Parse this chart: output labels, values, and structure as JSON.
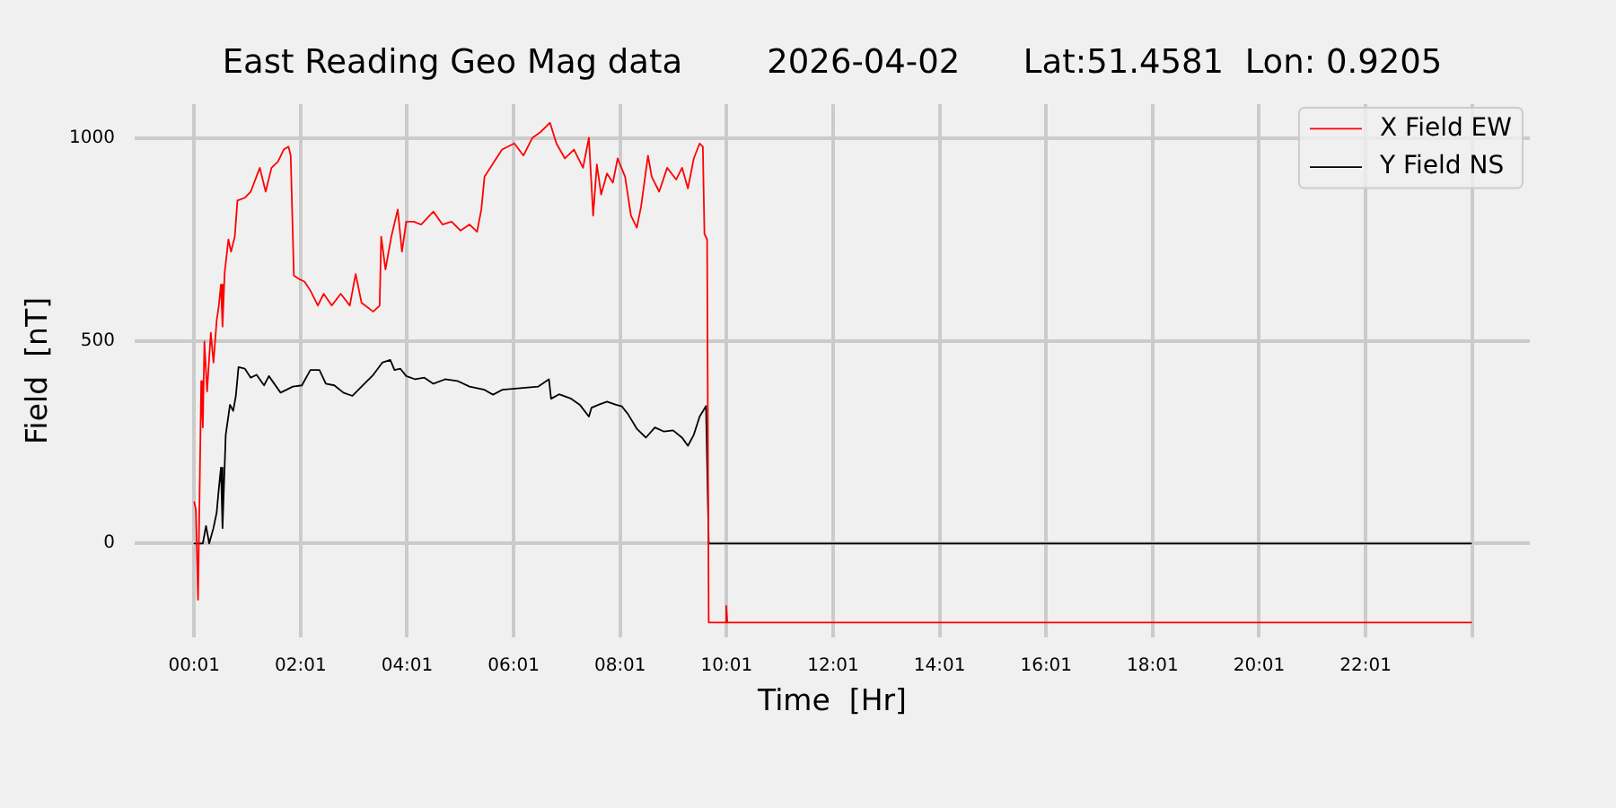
{
  "chart_data": {
    "type": "line",
    "title": "East Reading Geo Mag data        2026-04-02      Lat:51.4581  Lon: 0.9205",
    "xlabel": "Time  [Hr]",
    "ylabel": "Field  [nT]",
    "xlim": [
      -1.1,
      25.1
    ],
    "ylim": [
      -232,
      1084
    ],
    "xticks": [
      {
        "value": 0.0167,
        "label": "00:01"
      },
      {
        "value": 2.0167,
        "label": "02:01"
      },
      {
        "value": 4.0167,
        "label": "04:01"
      },
      {
        "value": 6.0167,
        "label": "06:01"
      },
      {
        "value": 8.0167,
        "label": "08:01"
      },
      {
        "value": 10.0167,
        "label": "10:01"
      },
      {
        "value": 12.0167,
        "label": "12:01"
      },
      {
        "value": 14.0167,
        "label": "14:01"
      },
      {
        "value": 16.0167,
        "label": "16:01"
      },
      {
        "value": 18.0167,
        "label": "18:01"
      },
      {
        "value": 20.0167,
        "label": "20:01"
      },
      {
        "value": 22.0167,
        "label": "22:01"
      },
      {
        "value": 24.0167,
        "label": null
      }
    ],
    "yticks": [
      0,
      500,
      1000
    ],
    "grid": true,
    "legend": "top right",
    "marker": "none",
    "line_style": "solid",
    "series": [
      {
        "name": "X Field EW",
        "color": "#ff0000",
        "x": [
          0.02,
          0.05,
          0.09,
          0.15,
          0.18,
          0.21,
          0.26,
          0.33,
          0.38,
          0.44,
          0.48,
          0.52,
          0.55,
          0.59,
          0.66,
          0.71,
          0.78,
          0.83,
          0.97,
          1.08,
          1.25,
          1.36,
          1.47,
          1.59,
          1.7,
          1.79,
          1.83,
          1.89,
          1.98,
          2.09,
          2.2,
          2.34,
          2.45,
          2.6,
          2.77,
          2.94,
          3.05,
          3.16,
          3.38,
          3.5,
          3.53,
          3.61,
          3.72,
          3.84,
          3.92,
          4.0,
          4.14,
          4.28,
          4.51,
          4.68,
          4.85,
          5.02,
          5.19,
          5.33,
          5.41,
          5.47,
          5.58,
          5.69,
          5.8,
          6.03,
          6.2,
          6.37,
          6.53,
          6.7,
          6.82,
          6.98,
          7.15,
          7.32,
          7.43,
          7.51,
          7.58,
          7.66,
          7.77,
          7.88,
          7.97,
          8.11,
          8.22,
          8.33,
          8.41,
          8.54,
          8.61,
          8.75,
          8.9,
          9.07,
          9.18,
          9.29,
          9.4,
          9.51,
          9.57,
          9.6,
          9.65,
          9.68,
          10.0,
          10.01,
          10.03,
          24.0
        ],
        "values": [
          102,
          83,
          -139,
          401,
          286,
          498,
          375,
          520,
          446,
          550,
          587,
          639,
          535,
          668,
          750,
          720,
          757,
          846,
          853,
          868,
          927,
          868,
          927,
          942,
          972,
          979,
          957,
          661,
          653,
          646,
          624,
          587,
          616,
          587,
          616,
          587,
          665,
          594,
          572,
          587,
          757,
          676,
          757,
          824,
          720,
          794,
          794,
          787,
          819,
          787,
          794,
          772,
          787,
          769,
          824,
          905,
          927,
          950,
          972,
          987,
          957,
          1001,
          1016,
          1038,
          987,
          950,
          972,
          927,
          1001,
          809,
          935,
          861,
          913,
          890,
          950,
          905,
          809,
          779,
          831,
          957,
          905,
          868,
          927,
          898,
          927,
          876,
          950,
          987,
          979,
          764,
          750,
          -195,
          -195,
          -154,
          -195,
          -195
        ]
      },
      {
        "name": "Y Field NS",
        "color": "#000000",
        "x": [
          0.02,
          0.18,
          0.24,
          0.3,
          0.38,
          0.44,
          0.48,
          0.52,
          0.55,
          0.61,
          0.69,
          0.75,
          0.8,
          0.85,
          0.97,
          1.08,
          1.19,
          1.33,
          1.42,
          1.64,
          1.87,
          2.04,
          2.2,
          2.37,
          2.49,
          2.65,
          2.82,
          2.99,
          3.16,
          3.38,
          3.55,
          3.7,
          3.78,
          3.89,
          4.0,
          4.17,
          4.34,
          4.51,
          4.73,
          4.96,
          5.19,
          5.47,
          5.63,
          5.8,
          6.14,
          6.48,
          6.68,
          6.72,
          6.87,
          7.1,
          7.26,
          7.43,
          7.48,
          7.61,
          7.77,
          7.94,
          8.05,
          8.16,
          8.33,
          8.5,
          8.67,
          8.84,
          9.01,
          9.18,
          9.29,
          9.4,
          9.51,
          9.63,
          9.68,
          24.0
        ],
        "values": [
          0,
          0,
          43,
          0,
          38,
          76,
          135,
          187,
          38,
          268,
          342,
          327,
          364,
          435,
          431,
          409,
          416,
          390,
          413,
          372,
          387,
          390,
          428,
          428,
          394,
          390,
          372,
          364,
          387,
          416,
          446,
          453,
          428,
          431,
          413,
          405,
          409,
          394,
          405,
          401,
          387,
          379,
          367,
          379,
          383,
          387,
          405,
          357,
          368,
          357,
          342,
          313,
          335,
          342,
          350,
          342,
          338,
          320,
          283,
          261,
          286,
          276,
          279,
          261,
          241,
          268,
          313,
          339,
          0,
          0
        ]
      }
    ]
  }
}
